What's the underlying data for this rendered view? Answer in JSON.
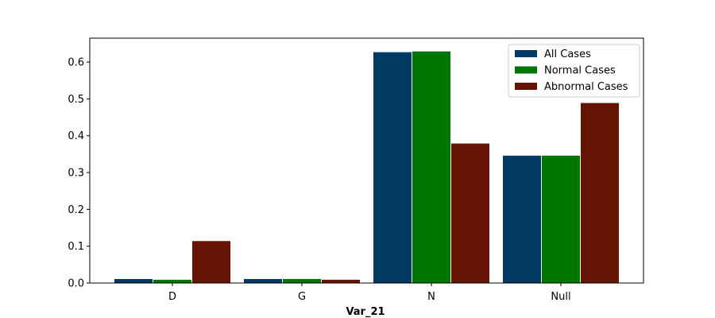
{
  "chart_data": {
    "type": "bar",
    "title": "",
    "xlabel": "Var_21",
    "ylabel": "",
    "categories": [
      "D",
      "G",
      "N",
      "Null"
    ],
    "ylim": [
      0,
      0.665
    ],
    "yticks": [
      0.0,
      0.1,
      0.2,
      0.3,
      0.4,
      0.5,
      0.6
    ],
    "ytick_labels": [
      "0.0",
      "0.1",
      "0.2",
      "0.3",
      "0.4",
      "0.5",
      "0.6"
    ],
    "grid": false,
    "legend_position": "top-right",
    "series": [
      {
        "name": "All Cases",
        "color": "#003a63",
        "values": [
          0.012,
          0.012,
          0.628,
          0.347
        ]
      },
      {
        "name": "Normal Cases",
        "color": "#007600",
        "values": [
          0.01,
          0.012,
          0.63,
          0.347
        ]
      },
      {
        "name": "Abnormal Cases",
        "color": "#651403",
        "values": [
          0.115,
          0.01,
          0.38,
          0.49
        ]
      }
    ]
  }
}
